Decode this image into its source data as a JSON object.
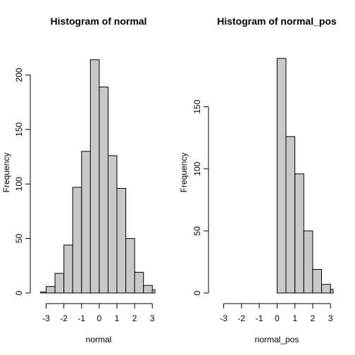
{
  "chart_data": [
    {
      "type": "bar",
      "title": "Histogram of normal",
      "xlabel": "normal",
      "ylabel": "Frequency",
      "bar_color": "#c8c8c8",
      "bins": [
        {
          "x0": -3.5,
          "x1": -3.0,
          "count": 1
        },
        {
          "x0": -3.0,
          "x1": -2.5,
          "count": 6
        },
        {
          "x0": -2.5,
          "x1": -2.0,
          "count": 18
        },
        {
          "x0": -2.0,
          "x1": -1.5,
          "count": 44
        },
        {
          "x0": -1.5,
          "x1": -1.0,
          "count": 97
        },
        {
          "x0": -1.0,
          "x1": -0.5,
          "count": 130
        },
        {
          "x0": -0.5,
          "x1": 0.0,
          "count": 214
        },
        {
          "x0": 0.0,
          "x1": 0.5,
          "count": 189
        },
        {
          "x0": 0.5,
          "x1": 1.0,
          "count": 126
        },
        {
          "x0": 1.0,
          "x1": 1.5,
          "count": 96
        },
        {
          "x0": 1.5,
          "x1": 2.0,
          "count": 50
        },
        {
          "x0": 2.0,
          "x1": 2.5,
          "count": 19
        },
        {
          "x0": 2.5,
          "x1": 3.0,
          "count": 7
        },
        {
          "x0": 3.0,
          "x1": 3.5,
          "count": 3
        }
      ],
      "xticks": [
        -3,
        -2,
        -1,
        0,
        1,
        2,
        3
      ],
      "yticks": [
        0,
        50,
        100,
        150,
        200
      ],
      "xlim": [
        -3.3,
        3.15
      ],
      "ylim": [
        0,
        230
      ]
    },
    {
      "type": "bar",
      "title": "Histogram of normal_pos",
      "xlabel": "normal_pos",
      "ylabel": "Frequency",
      "bar_color": "#c8c8c8",
      "bins": [
        {
          "x0": 0.0,
          "x1": 0.5,
          "count": 189
        },
        {
          "x0": 0.5,
          "x1": 1.0,
          "count": 126
        },
        {
          "x0": 1.0,
          "x1": 1.5,
          "count": 96
        },
        {
          "x0": 1.5,
          "x1": 2.0,
          "count": 50
        },
        {
          "x0": 2.0,
          "x1": 2.5,
          "count": 19
        },
        {
          "x0": 2.5,
          "x1": 3.0,
          "count": 7
        },
        {
          "x0": 3.0,
          "x1": 3.5,
          "count": 3
        }
      ],
      "xticks": [
        -3,
        -2,
        -1,
        0,
        1,
        2,
        3
      ],
      "yticks": [
        0,
        50,
        100,
        150
      ],
      "xlim": [
        -3.3,
        3.15
      ],
      "ylim": [
        0,
        202
      ]
    }
  ]
}
